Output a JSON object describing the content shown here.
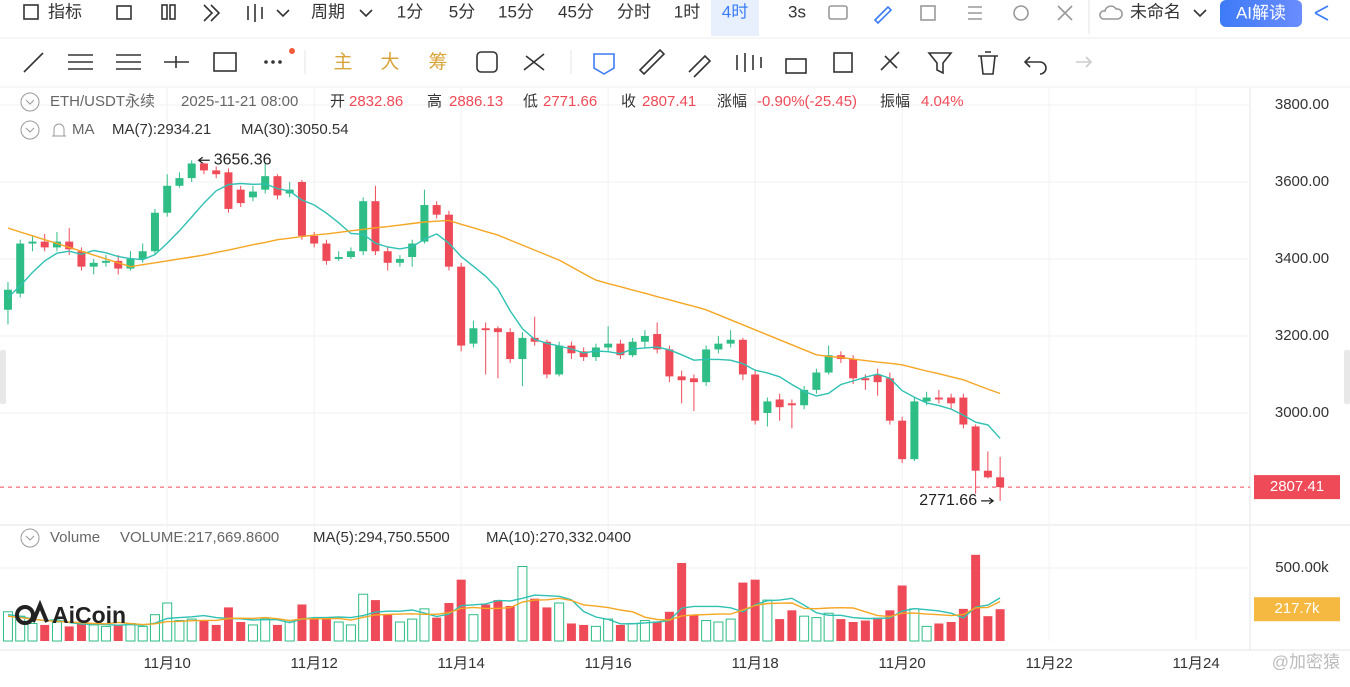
{
  "toolbar": {
    "indicators": "指标",
    "period": "周期",
    "intervals": [
      "1分",
      "5分",
      "15分",
      "45分",
      "分时",
      "1时",
      "4时"
    ],
    "refresh": "3s",
    "layout_name": "未命名",
    "ai_button": "AI解读",
    "drawing_modes": [
      "主",
      "大",
      "筹"
    ]
  },
  "legend": {
    "symbol": "ETH/USDT永续",
    "time": "2025-11-21 08:00",
    "fields": [
      {
        "label": "开",
        "value": "2832.86"
      },
      {
        "label": "高",
        "value": "2886.13"
      },
      {
        "label": "低",
        "value": "2771.66"
      },
      {
        "label": "收",
        "value": "2807.41"
      },
      {
        "label": "涨幅",
        "value": "-0.90%(-25.45)"
      },
      {
        "label": "振幅",
        "value": "4.04%"
      }
    ],
    "ma_title": "MA",
    "volume_title": "Volume",
    "volume_text": "VOLUME:217,669.8600"
  },
  "watermark": "AiCoin",
  "corner_watermark": "@加密猿",
  "chart_data": {
    "type": "candlestick",
    "up_color": "#2ebd85",
    "down_color": "#ef4a57",
    "grid": true,
    "xlim": [
      -0.65,
      101.4
    ],
    "xticks": [
      {
        "value": 13,
        "label": "11月10"
      },
      {
        "value": 25,
        "label": "11月12"
      },
      {
        "value": 37,
        "label": "11月14"
      },
      {
        "value": 49,
        "label": "11月16"
      },
      {
        "value": 61,
        "label": "11月18"
      },
      {
        "value": 73,
        "label": "11月20"
      },
      {
        "value": 85,
        "label": "11月22"
      },
      {
        "value": 97,
        "label": "11月24"
      }
    ],
    "ylim": [
      2709,
      3844
    ],
    "yticks": [
      {
        "value": 3800,
        "label": "3800.00"
      },
      {
        "value": 3600,
        "label": "3600.00"
      },
      {
        "value": 3400,
        "label": "3400.00"
      },
      {
        "value": 3200,
        "label": "3200.00"
      },
      {
        "value": 3000,
        "label": "3000.00"
      }
    ],
    "open": [
      3268,
      3310,
      3440,
      3445,
      3430,
      3445,
      3420,
      3380,
      3390,
      3395,
      3375,
      3400,
      3420,
      3520,
      3590,
      3610,
      3648,
      3630,
      3625,
      3580,
      3560,
      3580,
      3615,
      3570,
      3600,
      3460,
      3440,
      3400,
      3405,
      3420,
      3550,
      3420,
      3390,
      3405,
      3445,
      3540,
      3515,
      3380,
      3180,
      3220,
      3220,
      3210,
      3140,
      3195,
      3185,
      3100,
      3175,
      3160,
      3145,
      3170,
      3180,
      3150,
      3185,
      3205,
      3165,
      3095,
      3090,
      3080,
      3165,
      3180,
      3190,
      3100,
      3000,
      3035,
      3025,
      3020,
      3060,
      3105,
      3150,
      3140,
      3090,
      3100,
      3090,
      2980,
      2880,
      3030,
      3040,
      3040,
      3040,
      2965,
      2850,
      2832.86
    ],
    "high": [
      3340,
      3450,
      3460,
      3465,
      3470,
      3480,
      3430,
      3400,
      3410,
      3410,
      3420,
      3440,
      3530,
      3620,
      3625,
      3656.36,
      3650,
      3640,
      3635,
      3590,
      3590,
      3650,
      3620,
      3600,
      3605,
      3470,
      3450,
      3420,
      3430,
      3560,
      3590,
      3430,
      3410,
      3450,
      3580,
      3550,
      3525,
      3390,
      3240,
      3235,
      3225,
      3220,
      3210,
      3250,
      3190,
      3185,
      3185,
      3170,
      3180,
      3225,
      3190,
      3195,
      3215,
      3235,
      3175,
      3110,
      3100,
      3175,
      3200,
      3215,
      3195,
      3110,
      3040,
      3050,
      3035,
      3070,
      3115,
      3175,
      3160,
      3150,
      3100,
      3115,
      3105,
      2990,
      3040,
      3055,
      3060,
      3050,
      3050,
      2970,
      2900,
      2886.13
    ],
    "low": [
      3230,
      3300,
      3420,
      3420,
      3420,
      3410,
      3370,
      3360,
      3380,
      3360,
      3370,
      3390,
      3410,
      3510,
      3585,
      3600,
      3620,
      3610,
      3520,
      3535,
      3550,
      3570,
      3555,
      3560,
      3450,
      3430,
      3385,
      3395,
      3400,
      3410,
      3410,
      3370,
      3380,
      3380,
      3440,
      3505,
      3370,
      3160,
      3170,
      3100,
      3090,
      3130,
      3070,
      3175,
      3090,
      3095,
      3140,
      3135,
      3135,
      3160,
      3140,
      3145,
      3170,
      3155,
      3080,
      3025,
      3005,
      3070,
      3155,
      3170,
      3085,
      2970,
      2965,
      2980,
      2960,
      3010,
      3050,
      3100,
      3130,
      3075,
      3060,
      3045,
      2970,
      2870,
      2875,
      3020,
      3025,
      3010,
      2960,
      2790,
      2830,
      2771.66
    ],
    "close": [
      3320,
      3440,
      3445,
      3430,
      3445,
      3425,
      3380,
      3390,
      3395,
      3375,
      3400,
      3420,
      3520,
      3590,
      3610,
      3648,
      3630,
      3620,
      3530,
      3545,
      3575,
      3615,
      3565,
      3580,
      3460,
      3440,
      3395,
      3405,
      3420,
      3550,
      3420,
      3390,
      3400,
      3440,
      3540,
      3515,
      3380,
      3175,
      3220,
      3215,
      3210,
      3140,
      3195,
      3185,
      3100,
      3175,
      3155,
      3145,
      3170,
      3180,
      3150,
      3185,
      3200,
      3165,
      3095,
      3085,
      3080,
      3165,
      3180,
      3190,
      3100,
      2980,
      3030,
      3015,
      3020,
      3060,
      3105,
      3150,
      3140,
      3090,
      3085,
      3080,
      2980,
      2880,
      3030,
      3040,
      3035,
      3025,
      2970,
      2850,
      2832.86,
      2807.41
    ],
    "ma": [
      {
        "label": "MA(7):2934.21",
        "color": "#2fc1b3",
        "values": [
          3300,
          3330,
          3365,
          3395,
          3415,
          3420,
          3412,
          3422,
          3416,
          3406,
          3401,
          3398,
          3411,
          3441,
          3473,
          3509,
          3545,
          3577,
          3593,
          3596,
          3594,
          3595,
          3583,
          3576,
          3553,
          3540,
          3519,
          3494,
          3466,
          3464,
          3441,
          3431,
          3426,
          3432,
          3451,
          3465,
          3441,
          3406,
          3381,
          3355,
          3322,
          3265,
          3219,
          3191,
          3181,
          3174,
          3166,
          3156,
          3161,
          3159,
          3154,
          3166,
          3169,
          3171,
          3164,
          3151,
          3137,
          3139,
          3139,
          3137,
          3128,
          3111,
          3104,
          3094,
          3074,
          3056,
          3044,
          3051,
          3074,
          3083,
          3093,
          3101,
          3090,
          3058,
          3041,
          3026,
          3019,
          3010,
          2994,
          2976,
          2969,
          2934.21
        ]
      },
      {
        "label": "MA(30):3050.54",
        "color": "#f5a623",
        "values": [
          3480,
          3470,
          3460,
          3450,
          3440,
          3430,
          3420,
          3410,
          3400,
          3390,
          3380,
          3385,
          3390,
          3395,
          3400,
          3405,
          3410,
          3417,
          3423,
          3430,
          3437,
          3443,
          3450,
          3454,
          3458,
          3462,
          3465,
          3469,
          3473,
          3477,
          3481,
          3484,
          3488,
          3492,
          3496,
          3498,
          3500,
          3490,
          3481,
          3471,
          3462,
          3449,
          3436,
          3423,
          3410,
          3397,
          3380,
          3362,
          3345,
          3336,
          3328,
          3319,
          3311,
          3302,
          3294,
          3285,
          3277,
          3268,
          3255,
          3242,
          3229,
          3216,
          3203,
          3190,
          3177,
          3164,
          3151,
          3147,
          3144,
          3140,
          3136,
          3132,
          3129,
          3125,
          3117,
          3109,
          3102,
          3094,
          3086,
          3074,
          3062,
          3050.54
        ]
      }
    ],
    "last_price": 2807.41,
    "high_mark": {
      "x": 15,
      "value": 3656.36
    },
    "low_mark": {
      "x": 81,
      "value": 2771.66
    },
    "volume": {
      "ylim": [
        0,
        623
      ],
      "yticks": [
        {
          "value": 500,
          "label": "500.00k"
        }
      ],
      "values": [
        200,
        170,
        120,
        110,
        130,
        100,
        120,
        110,
        100,
        110,
        120,
        100,
        180,
        260,
        140,
        150,
        140,
        110,
        230,
        130,
        110,
        150,
        110,
        130,
        250,
        160,
        150,
        130,
        110,
        320,
        280,
        180,
        130,
        150,
        220,
        160,
        260,
        420,
        180,
        250,
        280,
        240,
        510,
        290,
        230,
        260,
        120,
        110,
        100,
        150,
        110,
        120,
        140,
        130,
        200,
        534,
        180,
        140,
        130,
        150,
        400,
        420,
        280,
        150,
        210,
        170,
        160,
        190,
        150,
        130,
        140,
        160,
        210,
        380,
        220,
        100,
        120,
        130,
        220,
        590,
        170,
        217.66986
      ],
      "last": {
        "value": 217.66986,
        "label": "217.7k"
      },
      "ma": [
        {
          "label": "MA(5):294,750.5500",
          "color": "#2fc1b3",
          "values": [
            180,
            170,
            150,
            140,
            146,
            126,
            116,
            114,
            112,
            108,
            112,
            108,
            122,
            154,
            160,
            166,
            174,
            160,
            154,
            152,
            144,
            146,
            146,
            126,
            150,
            160,
            160,
            164,
            160,
            174,
            198,
            204,
            204,
            212,
            192,
            168,
            184,
            242,
            248,
            254,
            278,
            274,
            292,
            314,
            310,
            306,
            282,
            202,
            164,
            148,
            118,
            118,
            124,
            130,
            140,
            225,
            237,
            237,
            237,
            227,
            200,
            248,
            276,
            280,
            292,
            246,
            194,
            176,
            176,
            160,
            154,
            154,
            158,
            204,
            222,
            214,
            206,
            190,
            158,
            232,
            246,
            294.75055
          ]
        },
        {
          "label": "MA(10):270,332.0400",
          "color": "#f5a623",
          "values": [
            170,
            160,
            150,
            140,
            135,
            130,
            125,
            120,
            118,
            127,
            119,
            112,
            118,
            133,
            134,
            139,
            141,
            141,
            154,
            156,
            155,
            160,
            153,
            140,
            151,
            152,
            153,
            155,
            143,
            162,
            179,
            182,
            184,
            186,
            183,
            183,
            194,
            223,
            230,
            223,
            223,
            229,
            267,
            281,
            282,
            292,
            278,
            247,
            239,
            229,
            212,
            200,
            163,
            147,
            144,
            172,
            178,
            181,
            184,
            184,
            213,
            243,
            257,
            259,
            260,
            223,
            221,
            226,
            228,
            226,
            200,
            174,
            167,
            190,
            191,
            184,
            180,
            174,
            181,
            227,
            230,
            270.33204
          ]
        }
      ]
    }
  }
}
